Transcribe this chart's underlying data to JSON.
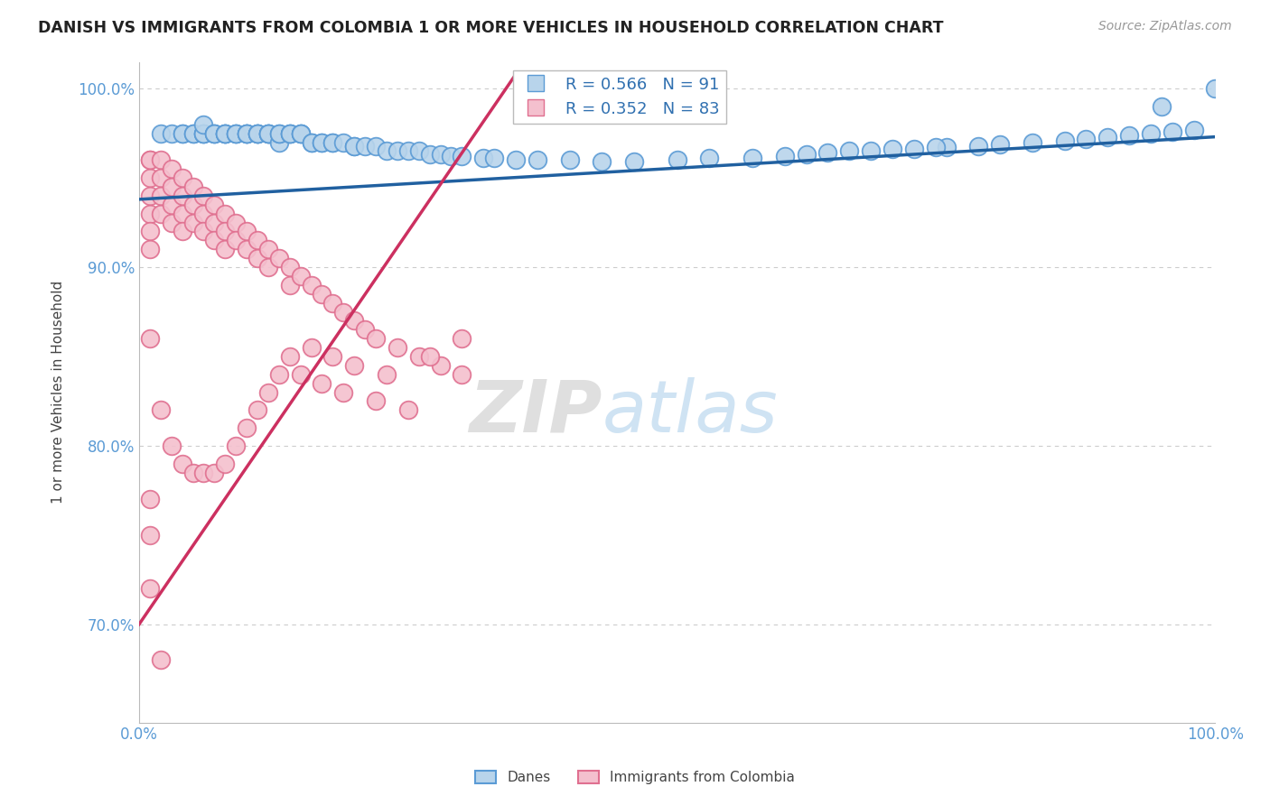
{
  "title": "DANISH VS IMMIGRANTS FROM COLOMBIA 1 OR MORE VEHICLES IN HOUSEHOLD CORRELATION CHART",
  "source": "Source: ZipAtlas.com",
  "ylabel": "1 or more Vehicles in Household",
  "xlim": [
    0.0,
    1.0
  ],
  "ylim": [
    0.645,
    1.015
  ],
  "yticks": [
    0.7,
    0.8,
    0.9,
    1.0
  ],
  "ytick_labels": [
    "70.0%",
    "80.0%",
    "90.0%",
    "100.0%"
  ],
  "xticks": [
    0.0,
    0.1,
    0.2,
    0.3,
    0.4,
    0.5,
    0.6,
    0.7,
    0.8,
    0.9,
    1.0
  ],
  "xtick_labels": [
    "0.0%",
    "",
    "",
    "",
    "",
    "",
    "",
    "",
    "",
    "",
    "100.0%"
  ],
  "grid_yticks": [
    0.7,
    0.8,
    0.9,
    1.0
  ],
  "blue_R": 0.566,
  "blue_N": 91,
  "pink_R": 0.352,
  "pink_N": 83,
  "blue_color": "#b8d4eb",
  "blue_edge": "#5b9bd5",
  "pink_color": "#f4c0ce",
  "pink_edge": "#e07090",
  "blue_line_color": "#2060a0",
  "pink_line_color": "#cc3060",
  "watermark_zip": "ZIP",
  "watermark_atlas": "atlas",
  "legend_danes": "Danes",
  "legend_colombia": "Immigrants from Colombia",
  "danes_x": [
    0.02,
    0.03,
    0.04,
    0.04,
    0.05,
    0.05,
    0.06,
    0.06,
    0.06,
    0.06,
    0.07,
    0.07,
    0.07,
    0.08,
    0.08,
    0.08,
    0.08,
    0.09,
    0.09,
    0.09,
    0.1,
    0.1,
    0.1,
    0.1,
    0.11,
    0.11,
    0.11,
    0.11,
    0.12,
    0.12,
    0.12,
    0.12,
    0.13,
    0.13,
    0.13,
    0.14,
    0.14,
    0.14,
    0.15,
    0.15,
    0.15,
    0.16,
    0.16,
    0.17,
    0.17,
    0.18,
    0.18,
    0.19,
    0.2,
    0.2,
    0.21,
    0.22,
    0.23,
    0.24,
    0.25,
    0.26,
    0.27,
    0.28,
    0.29,
    0.3,
    0.32,
    0.33,
    0.35,
    0.37,
    0.4,
    0.43,
    0.46,
    0.5,
    0.53,
    0.57,
    0.6,
    0.62,
    0.64,
    0.68,
    0.72,
    0.75,
    0.78,
    0.8,
    0.83,
    0.86,
    0.88,
    0.9,
    0.92,
    0.94,
    0.96,
    0.98,
    1.0,
    0.66,
    0.7,
    0.74,
    0.95
  ],
  "danes_y": [
    0.975,
    0.975,
    0.975,
    0.975,
    0.975,
    0.975,
    0.975,
    0.975,
    0.975,
    0.98,
    0.975,
    0.975,
    0.975,
    0.975,
    0.975,
    0.975,
    0.975,
    0.975,
    0.975,
    0.975,
    0.975,
    0.975,
    0.975,
    0.975,
    0.975,
    0.975,
    0.975,
    0.975,
    0.975,
    0.975,
    0.975,
    0.975,
    0.97,
    0.975,
    0.975,
    0.975,
    0.975,
    0.975,
    0.975,
    0.975,
    0.975,
    0.97,
    0.97,
    0.97,
    0.97,
    0.97,
    0.97,
    0.97,
    0.968,
    0.968,
    0.968,
    0.968,
    0.965,
    0.965,
    0.965,
    0.965,
    0.963,
    0.963,
    0.962,
    0.962,
    0.961,
    0.961,
    0.96,
    0.96,
    0.96,
    0.959,
    0.959,
    0.96,
    0.961,
    0.961,
    0.962,
    0.963,
    0.964,
    0.965,
    0.966,
    0.967,
    0.968,
    0.969,
    0.97,
    0.971,
    0.972,
    0.973,
    0.974,
    0.975,
    0.976,
    0.977,
    1.0,
    0.965,
    0.966,
    0.967,
    0.99
  ],
  "colombia_x": [
    0.01,
    0.01,
    0.01,
    0.01,
    0.01,
    0.01,
    0.01,
    0.02,
    0.02,
    0.02,
    0.02,
    0.03,
    0.03,
    0.03,
    0.03,
    0.04,
    0.04,
    0.04,
    0.04,
    0.05,
    0.05,
    0.05,
    0.06,
    0.06,
    0.06,
    0.07,
    0.07,
    0.07,
    0.08,
    0.08,
    0.08,
    0.09,
    0.09,
    0.1,
    0.1,
    0.11,
    0.11,
    0.12,
    0.12,
    0.13,
    0.14,
    0.14,
    0.15,
    0.16,
    0.17,
    0.18,
    0.19,
    0.2,
    0.21,
    0.22,
    0.24,
    0.26,
    0.28,
    0.3,
    0.15,
    0.17,
    0.19,
    0.22,
    0.25,
    0.01,
    0.02,
    0.03,
    0.04,
    0.05,
    0.06,
    0.07,
    0.08,
    0.09,
    0.1,
    0.11,
    0.12,
    0.13,
    0.14,
    0.16,
    0.18,
    0.2,
    0.23,
    0.27,
    0.3,
    0.01,
    0.01,
    0.01,
    0.02
  ],
  "colombia_y": [
    0.96,
    0.95,
    0.94,
    0.93,
    0.92,
    0.91,
    0.96,
    0.96,
    0.95,
    0.94,
    0.93,
    0.955,
    0.945,
    0.935,
    0.925,
    0.95,
    0.94,
    0.93,
    0.92,
    0.945,
    0.935,
    0.925,
    0.94,
    0.93,
    0.92,
    0.935,
    0.925,
    0.915,
    0.93,
    0.92,
    0.91,
    0.925,
    0.915,
    0.92,
    0.91,
    0.915,
    0.905,
    0.91,
    0.9,
    0.905,
    0.9,
    0.89,
    0.895,
    0.89,
    0.885,
    0.88,
    0.875,
    0.87,
    0.865,
    0.86,
    0.855,
    0.85,
    0.845,
    0.84,
    0.84,
    0.835,
    0.83,
    0.825,
    0.82,
    0.86,
    0.82,
    0.8,
    0.79,
    0.785,
    0.785,
    0.785,
    0.79,
    0.8,
    0.81,
    0.82,
    0.83,
    0.84,
    0.85,
    0.855,
    0.85,
    0.845,
    0.84,
    0.85,
    0.86,
    0.77,
    0.75,
    0.72,
    0.68
  ]
}
